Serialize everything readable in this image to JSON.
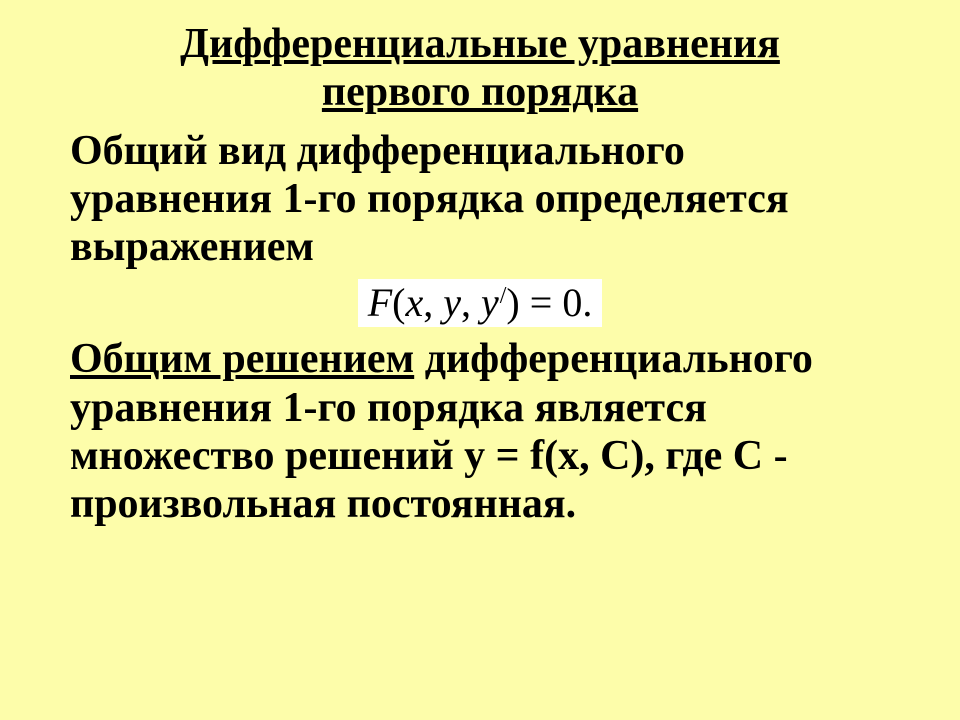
{
  "slide": {
    "background_color": "#fdfdaa",
    "text_color": "#000000",
    "font_family": "Times New Roman",
    "title_fontsize": 42,
    "body_fontsize": 42,
    "title_line1": "Дифференциальные уравнения",
    "title_line2": "первого порядка",
    "paragraph1": "Общий вид дифференциального уравнения 1-го порядка определяется выражением",
    "formula": {
      "display_text": "F(x, y, y′) = 0.",
      "background_color": "#ffffff",
      "font_style": "italic",
      "fontsize": 40
    },
    "paragraph2_underlined": "Общим решением",
    "paragraph2_rest": " дифференциального уравнения 1-го порядка  является множество решений   y = f(x, C),    где С - произвольная постоянная."
  }
}
